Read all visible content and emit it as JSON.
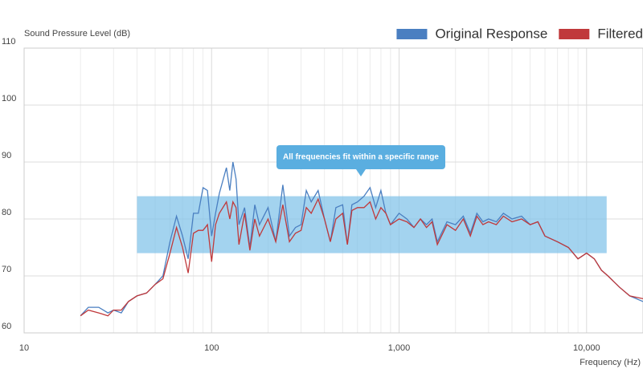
{
  "chart_data": {
    "type": "line",
    "y_label": "Sound Pressure Level (dB)",
    "x_label": "Frequency (Hz)",
    "annotation": "All frequencies fit within a specific range",
    "x_log": true,
    "grid": true,
    "legend": "top-right",
    "xlim": [
      10,
      20000
    ],
    "ylim": [
      60,
      110
    ],
    "xticks": [
      10,
      100,
      {
        "value": 1000,
        "label": "1,000"
      },
      {
        "value": 10000,
        "label": "10,000"
      }
    ],
    "yticks": [
      60,
      70,
      80,
      90,
      100,
      110
    ],
    "band": {
      "x": [
        40,
        12800
      ],
      "y": [
        74,
        84
      ],
      "color": "#7cc1e8"
    },
    "x": [
      20,
      22,
      25,
      28,
      30,
      33,
      36,
      40,
      45,
      50,
      55,
      60,
      65,
      70,
      75,
      80,
      85,
      90,
      95,
      100,
      105,
      110,
      120,
      125,
      130,
      135,
      140,
      150,
      160,
      170,
      180,
      200,
      220,
      240,
      260,
      280,
      300,
      320,
      340,
      370,
      400,
      430,
      460,
      500,
      530,
      560,
      600,
      650,
      700,
      750,
      800,
      850,
      900,
      1000,
      1100,
      1200,
      1300,
      1400,
      1500,
      1600,
      1800,
      2000,
      2200,
      2400,
      2600,
      2800,
      3000,
      3300,
      3600,
      4000,
      4500,
      5000,
      5500,
      6000,
      7000,
      8000,
      9000,
      10000,
      11000,
      12000,
      13000,
      15000,
      17000,
      20000
    ],
    "series": [
      {
        "name": "Original Response",
        "color": "#4a7fc1",
        "values": [
          63,
          64.5,
          64.5,
          63.5,
          64,
          63.5,
          65.5,
          66.5,
          67,
          68.5,
          70,
          76,
          80.5,
          77,
          73,
          81,
          81,
          85.5,
          85,
          77,
          81,
          84.5,
          89,
          85,
          90,
          87,
          79,
          82,
          75,
          82.5,
          79,
          82,
          76,
          86,
          77,
          78.5,
          79,
          85,
          83,
          85,
          80,
          76,
          82,
          82.5,
          75.5,
          82.5,
          83,
          84,
          85.5,
          82,
          85,
          81,
          79,
          81,
          80,
          78.5,
          80,
          79,
          80,
          76,
          79.5,
          79,
          80.5,
          77.5,
          81,
          79.5,
          80,
          79.5,
          81,
          80,
          80.5,
          79,
          79.5,
          77,
          76,
          75,
          73,
          74,
          73,
          71,
          70,
          68,
          66.5,
          65.5
        ]
      },
      {
        "name": "Filtered",
        "color": "#c0393b",
        "values": [
          63,
          64,
          63.5,
          63,
          64,
          64,
          65.5,
          66.5,
          67,
          68.5,
          69.5,
          74,
          78.5,
          75,
          70.5,
          77.5,
          78,
          78,
          79,
          72.5,
          79,
          81,
          83,
          80,
          83,
          82,
          75.5,
          81,
          74.5,
          80,
          77,
          80,
          76,
          82.5,
          76,
          77.5,
          78,
          82,
          81,
          83.5,
          80,
          76,
          80,
          81,
          75.5,
          81.5,
          82,
          82,
          83,
          80,
          82,
          81,
          79,
          80,
          79.5,
          78.5,
          80,
          78.5,
          79.5,
          75.5,
          79,
          78,
          80,
          77,
          80.5,
          79,
          79.5,
          79,
          80.5,
          79.5,
          80,
          79,
          79.5,
          77,
          76,
          75,
          73,
          74,
          73,
          71,
          70,
          68,
          66.5,
          66
        ]
      }
    ]
  }
}
